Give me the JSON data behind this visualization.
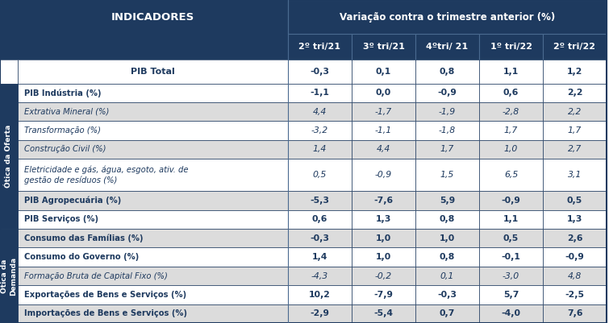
{
  "header_bg": "#1e3a5f",
  "header_text": "#ffffff",
  "side_label_bg": "#1e3a5f",
  "row_bg_white": "#ffffff",
  "row_bg_gray": "#dcdcdc",
  "border_color": "#1e3a5f",
  "text_color_dark": "#1e3a5f",
  "col_header": [
    "2º tri/21",
    "3º tri/21",
    "4ºtri/ 21",
    "1º tri/22",
    "2º tri/22"
  ],
  "super_header": "Variação contra o trimestre anterior (%)",
  "indicadores_label": "INDICADORES",
  "rows": [
    {
      "label": "PIB Total",
      "values": [
        "-0,3",
        "0,1",
        "0,8",
        "1,1",
        "1,2"
      ],
      "bold": true,
      "italic": false,
      "indent": 0,
      "bg": "white",
      "section": "none"
    },
    {
      "label": "PIB Indústria (%)",
      "values": [
        "-1,1",
        "0,0",
        "-0,9",
        "0,6",
        "2,2"
      ],
      "bold": true,
      "italic": false,
      "indent": 1,
      "bg": "white",
      "section": "oferta"
    },
    {
      "label": "Extrativa Mineral (%)",
      "values": [
        "4,4",
        "-1,7",
        "-1,9",
        "-2,8",
        "2,2"
      ],
      "bold": false,
      "italic": true,
      "indent": 2,
      "bg": "gray",
      "section": "oferta"
    },
    {
      "label": "Transformação (%)",
      "values": [
        "-3,2",
        "-1,1",
        "-1,8",
        "1,7",
        "1,7"
      ],
      "bold": false,
      "italic": true,
      "indent": 2,
      "bg": "white",
      "section": "oferta"
    },
    {
      "label": "Construção Civil (%)",
      "values": [
        "1,4",
        "4,4",
        "1,7",
        "1,0",
        "2,7"
      ],
      "bold": false,
      "italic": true,
      "indent": 2,
      "bg": "gray",
      "section": "oferta"
    },
    {
      "label": "Eletricidade e gás, água, esgoto, ativ. de\ngestão de resíduos (%)",
      "values": [
        "0,5",
        "-0,9",
        "1,5",
        "6,5",
        "3,1"
      ],
      "bold": false,
      "italic": true,
      "indent": 2,
      "bg": "white",
      "section": "oferta"
    },
    {
      "label": "PIB Agropecuária (%)",
      "values": [
        "-5,3",
        "-7,6",
        "5,9",
        "-0,9",
        "0,5"
      ],
      "bold": true,
      "italic": false,
      "indent": 1,
      "bg": "gray",
      "section": "oferta"
    },
    {
      "label": "PIB Serviços (%)",
      "values": [
        "0,6",
        "1,3",
        "0,8",
        "1,1",
        "1,3"
      ],
      "bold": true,
      "italic": false,
      "indent": 1,
      "bg": "white",
      "section": "oferta"
    },
    {
      "label": "Consumo das Famílias (%)",
      "values": [
        "-0,3",
        "1,0",
        "1,0",
        "0,5",
        "2,6"
      ],
      "bold": true,
      "italic": false,
      "indent": 1,
      "bg": "gray",
      "section": "demanda"
    },
    {
      "label": "Consumo do Governo (%)",
      "values": [
        "1,4",
        "1,0",
        "0,8",
        "-0,1",
        "-0,9"
      ],
      "bold": true,
      "italic": false,
      "indent": 1,
      "bg": "white",
      "section": "demanda"
    },
    {
      "label": "Formação Bruta de Capital Fixo (%)",
      "values": [
        "-4,3",
        "-0,2",
        "0,1",
        "-3,0",
        "4,8"
      ],
      "bold": false,
      "italic": true,
      "indent": 1,
      "bg": "gray",
      "section": "demanda"
    },
    {
      "label": "Exportações de Bens e Serviços (%)",
      "values": [
        "10,2",
        "-7,9",
        "-0,3",
        "5,7",
        "-2,5"
      ],
      "bold": true,
      "italic": false,
      "indent": 1,
      "bg": "white",
      "section": "demanda"
    },
    {
      "label": "Importações de Bens e Serviços (%)",
      "values": [
        "-2,9",
        "-5,4",
        "0,7",
        "-4,0",
        "7,6"
      ],
      "bold": true,
      "italic": false,
      "indent": 1,
      "bg": "gray",
      "section": "demanda"
    }
  ]
}
